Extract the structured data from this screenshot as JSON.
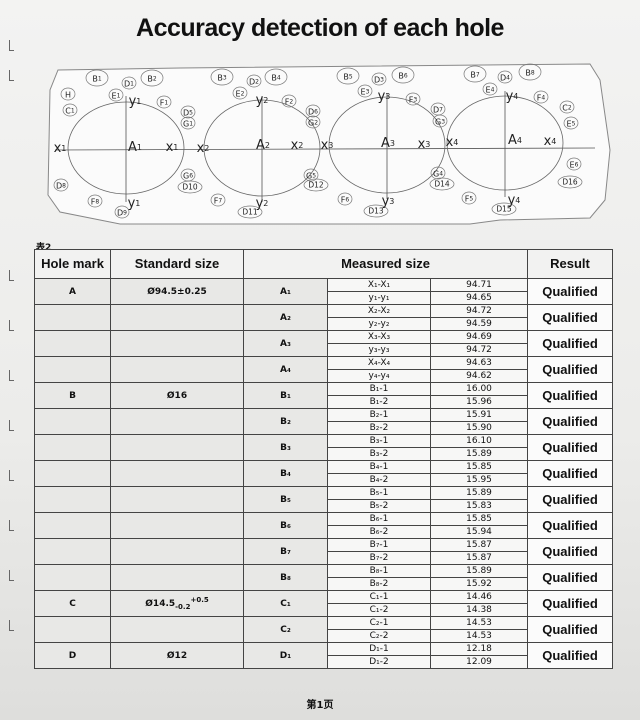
{
  "title": "Accuracy detection of each hole",
  "diagram": {
    "circle_labels": [
      "B1",
      "D1",
      "B2",
      "H",
      "E1",
      "F1",
      "C1",
      "D5",
      "G1",
      "D8",
      "F8",
      "D9",
      "G6",
      "D10",
      "B3",
      "D2",
      "B4",
      "E2",
      "F2",
      "D6",
      "G2",
      "G5",
      "D12",
      "F7",
      "D11",
      "B5",
      "D3",
      "B6",
      "E3",
      "F3",
      "D7",
      "G3",
      "G4",
      "D14",
      "F6",
      "D13",
      "F5",
      "D15",
      "B7",
      "D4",
      "B8",
      "E4",
      "F4",
      "C2",
      "E5",
      "E6",
      "D16"
    ],
    "axis_labels": [
      "y1",
      "A1",
      "x1",
      "x1",
      "y1",
      "y2",
      "A2",
      "x2",
      "x2",
      "y2",
      "y3",
      "A3",
      "x3",
      "x3",
      "y3",
      "y4",
      "A4",
      "x4",
      "x4",
      "y4"
    ]
  },
  "table": {
    "caption": "表2",
    "headers": [
      "Hole mark",
      "Standard size",
      "Measured size",
      "Result"
    ],
    "groups": [
      {
        "mark": "A",
        "std": "Ø94.5±0.25",
        "std_sub": "",
        "std_sup": "",
        "id": "A₁",
        "m": [
          [
            "X₁-X₁",
            "94.71"
          ],
          [
            "y₁-y₁",
            "94.65"
          ]
        ],
        "result": "Qualified"
      },
      {
        "mark": "",
        "std": "",
        "std_sub": "",
        "std_sup": "",
        "id": "A₂",
        "m": [
          [
            "X₂-X₂",
            "94.72"
          ],
          [
            "y₂-y₂",
            "94.59"
          ]
        ],
        "result": "Qualified"
      },
      {
        "mark": "",
        "std": "",
        "std_sub": "",
        "std_sup": "",
        "id": "A₃",
        "m": [
          [
            "X₃-X₃",
            "94.69"
          ],
          [
            "y₃-y₃",
            "94.72"
          ]
        ],
        "result": "Qualified"
      },
      {
        "mark": "",
        "std": "",
        "std_sub": "",
        "std_sup": "",
        "id": "A₄",
        "m": [
          [
            "X₄-X₄",
            "94.63"
          ],
          [
            "y₄-y₄",
            "94.62"
          ]
        ],
        "result": "Qualified"
      },
      {
        "mark": "B",
        "std": "Ø16",
        "std_sub": "",
        "std_sup": "",
        "id": "B₁",
        "m": [
          [
            "B₁-1",
            "16.00"
          ],
          [
            "B₁-2",
            "15.96"
          ]
        ],
        "result": "Qualified"
      },
      {
        "mark": "",
        "std": "",
        "std_sub": "",
        "std_sup": "",
        "id": "B₂",
        "m": [
          [
            "B₂-1",
            "15.91"
          ],
          [
            "B₂-2",
            "15.90"
          ]
        ],
        "result": "Qualified"
      },
      {
        "mark": "",
        "std": "",
        "std_sub": "",
        "std_sup": "",
        "id": "B₃",
        "m": [
          [
            "B₃-1",
            "16.10"
          ],
          [
            "B₃-2",
            "15.89"
          ]
        ],
        "result": "Qualified"
      },
      {
        "mark": "",
        "std": "",
        "std_sub": "",
        "std_sup": "",
        "id": "B₄",
        "m": [
          [
            "B₄-1",
            "15.85"
          ],
          [
            "B₄-2",
            "15.95"
          ]
        ],
        "result": "Qualified"
      },
      {
        "mark": "",
        "std": "",
        "std_sub": "",
        "std_sup": "",
        "id": "B₅",
        "m": [
          [
            "B₅-1",
            "15.89"
          ],
          [
            "B₅-2",
            "15.83"
          ]
        ],
        "result": "Qualified"
      },
      {
        "mark": "",
        "std": "",
        "std_sub": "",
        "std_sup": "",
        "id": "B₆",
        "m": [
          [
            "B₆-1",
            "15.85"
          ],
          [
            "B₆-2",
            "15.94"
          ]
        ],
        "result": "Qualified"
      },
      {
        "mark": "",
        "std": "",
        "std_sub": "",
        "std_sup": "",
        "id": "B₇",
        "m": [
          [
            "B₇-1",
            "15.87"
          ],
          [
            "B₇-2",
            "15.87"
          ]
        ],
        "result": "Qualified"
      },
      {
        "mark": "",
        "std": "",
        "std_sub": "",
        "std_sup": "",
        "id": "B₈",
        "m": [
          [
            "B₈-1",
            "15.89"
          ],
          [
            "B₈-2",
            "15.92"
          ]
        ],
        "result": "Qualified"
      },
      {
        "mark": "C",
        "std": "Ø14.5",
        "std_sub": "-0.2",
        "std_sup": "+0.5",
        "id": "C₁",
        "m": [
          [
            "C₁-1",
            "14.46"
          ],
          [
            "C₁-2",
            "14.38"
          ]
        ],
        "result": "Qualified"
      },
      {
        "mark": "",
        "std": "",
        "std_sub": "",
        "std_sup": "",
        "id": "C₂",
        "m": [
          [
            "C₂-1",
            "14.53"
          ],
          [
            "C₂-2",
            "14.53"
          ]
        ],
        "result": "Qualified"
      },
      {
        "mark": "D",
        "std": "Ø12",
        "std_sub": "",
        "std_sup": "",
        "id": "D₁",
        "m": [
          [
            "D₁-1",
            "12.18"
          ],
          [
            "D₁-2",
            "12.09"
          ]
        ],
        "result": "Qualified"
      }
    ]
  },
  "footer": "第1页"
}
